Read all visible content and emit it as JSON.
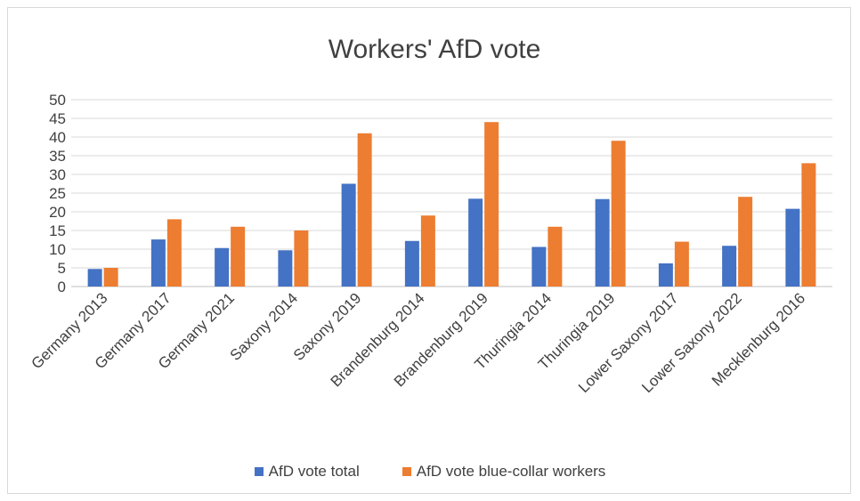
{
  "chart_data": {
    "type": "bar",
    "title": "Workers' AfD vote",
    "categories": [
      "Germany 2013",
      "Germany 2017",
      "Germany 2021",
      "Saxony 2014",
      "Saxony 2019",
      "Brandenburg 2014",
      "Brandenburg 2019",
      "Thuringia 2014",
      "Thuringia 2019",
      "Lower Saxony 2017",
      "Lower Saxony 2022",
      "Mecklenburg 2016"
    ],
    "series": [
      {
        "name": "AfD vote total",
        "color": "#4472c4",
        "values": [
          4.7,
          12.6,
          10.3,
          9.7,
          27.5,
          12.2,
          23.5,
          10.6,
          23.4,
          6.2,
          10.9,
          20.8
        ]
      },
      {
        "name": "AfD vote blue-collar workers",
        "color": "#ed7d31",
        "values": [
          5,
          18,
          16,
          15,
          41,
          19,
          44,
          16,
          39,
          12,
          24,
          33
        ]
      }
    ],
    "yticks": [
      "0",
      "5",
      "10",
      "15",
      "20",
      "25",
      "30",
      "35",
      "40",
      "45",
      "50"
    ],
    "ylim": [
      0,
      50
    ],
    "grid": true,
    "legend_position": "bottom"
  }
}
